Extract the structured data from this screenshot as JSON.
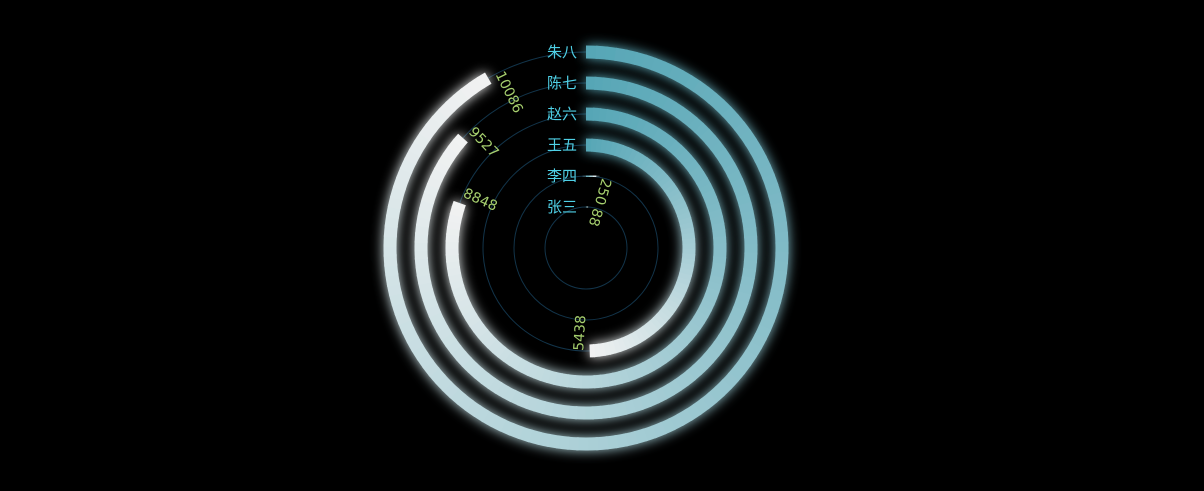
{
  "chart_data": {
    "type": "radial-bar",
    "categories": [
      "张三",
      "李四",
      "王五",
      "赵六",
      "陈七",
      "朱八"
    ],
    "values": [
      88,
      250,
      5438,
      8848,
      9527,
      10086
    ],
    "max": 11000,
    "value_labels": [
      "88",
      "250",
      "5438",
      "8848",
      "9527",
      "10086"
    ],
    "legend": "none",
    "grid": true
  },
  "colors": {
    "background": "#000000",
    "gradient_start": "#56a6b6",
    "gradient_end": "#f2f2f2",
    "category_label": "#4fd0e6",
    "value_label": "#a6cf6e",
    "track": "#12344a"
  }
}
